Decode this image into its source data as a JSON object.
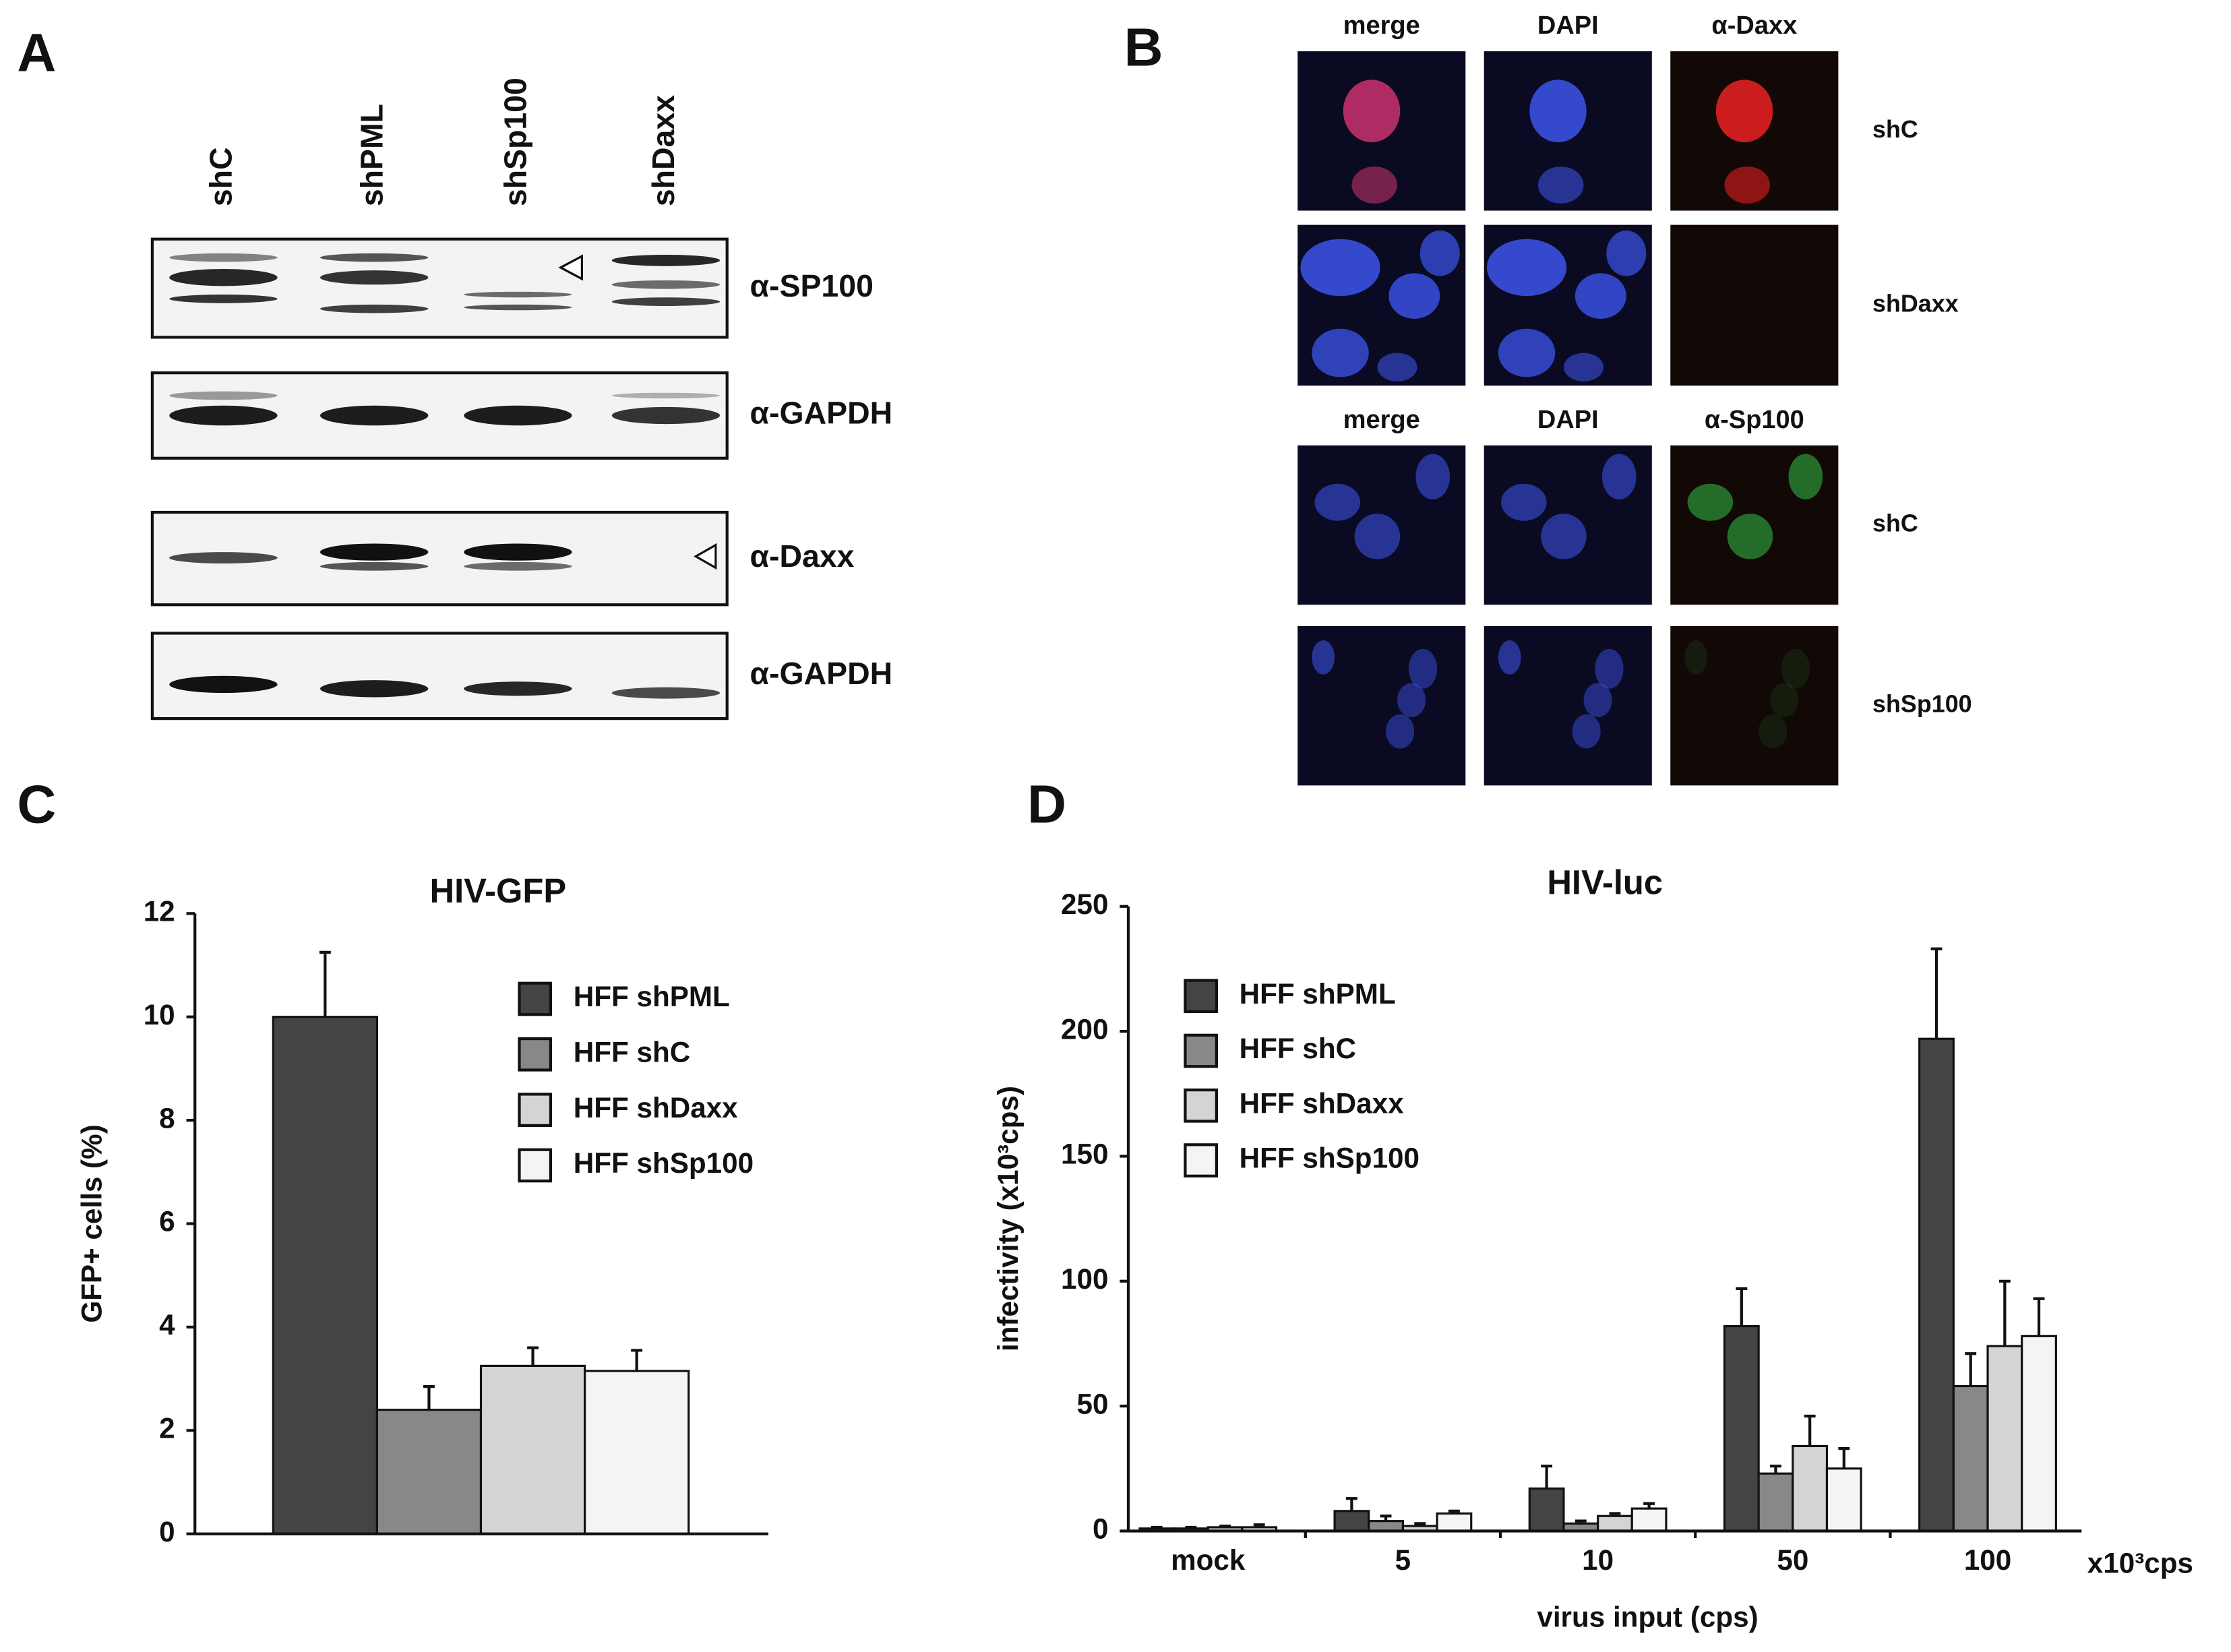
{
  "figure": {
    "panel_labels": [
      "A",
      "B",
      "C",
      "D"
    ],
    "blot": {
      "lanes": [
        "shC",
        "shPML",
        "shSp100",
        "shDaxx"
      ],
      "antibodies": [
        "α-SP100",
        "α-GAPDH",
        "α-Daxx",
        "α-GAPDH"
      ]
    },
    "microscopy": {
      "top": {
        "columns": [
          "merge",
          "DAPI",
          "α-Daxx"
        ],
        "rows": [
          "shC",
          "shDaxx"
        ]
      },
      "bottom": {
        "columns": [
          "merge",
          "DAPI",
          "α-Sp100"
        ],
        "rows": [
          "shC",
          "shSp100"
        ]
      }
    }
  },
  "chart_data": [
    {
      "type": "bar",
      "title": "HIV-GFP",
      "y_label": "GFP+ cells (%)",
      "categories": [
        null
      ],
      "ylim": [
        0,
        12
      ],
      "yticks": [
        0,
        2,
        4,
        6,
        8,
        10,
        12
      ],
      "series": [
        {
          "name": "HFF shPML",
          "color": "#444444",
          "values": [
            10
          ],
          "errors": [
            1.25
          ]
        },
        {
          "name": "HFF shC",
          "color": "#888888",
          "values": [
            2.4
          ],
          "errors": [
            0.45
          ]
        },
        {
          "name": "HFF shDaxx",
          "color": "#d4d4d4",
          "values": [
            3.25
          ],
          "errors": [
            0.35
          ]
        },
        {
          "name": "HFF shSp100",
          "color": "#f4f4f4",
          "values": [
            3.15
          ],
          "errors": [
            0.4
          ]
        }
      ]
    },
    {
      "type": "bar",
      "title": "HIV-luc",
      "y_label": "infectivity (x10³cps)",
      "x_label": "virus input (cps)",
      "x_unit": "x10³cps",
      "categories": [
        "mock",
        "5",
        "10",
        "50",
        "100"
      ],
      "ylim": [
        0,
        250
      ],
      "yticks": [
        0,
        50,
        100,
        150,
        200,
        250
      ],
      "series": [
        {
          "name": "HFF shPML",
          "color": "#444444",
          "values": [
            1,
            8,
            17,
            82,
            197
          ],
          "errors": [
            0.5,
            5,
            9,
            15,
            36
          ]
        },
        {
          "name": "HFF shC",
          "color": "#888888",
          "values": [
            1,
            4,
            3,
            23,
            58
          ],
          "errors": [
            0.5,
            2,
            1,
            3,
            13
          ]
        },
        {
          "name": "HFF shDaxx",
          "color": "#d4d4d4",
          "values": [
            1.5,
            2,
            6,
            34,
            74
          ],
          "errors": [
            0.5,
            1,
            1,
            12,
            26
          ]
        },
        {
          "name": "HFF shSp100",
          "color": "#f4f4f4",
          "values": [
            1.5,
            7,
            9,
            25,
            78
          ],
          "errors": [
            1,
            1,
            2,
            8,
            15
          ]
        }
      ]
    }
  ]
}
